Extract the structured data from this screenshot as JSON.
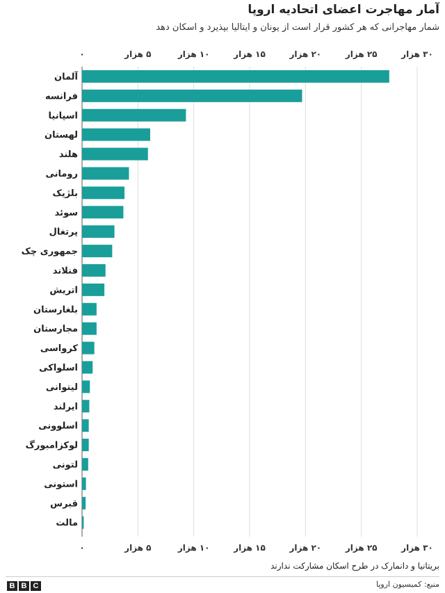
{
  "chart_data": {
    "type": "bar",
    "orientation": "horizontal",
    "title": "آمار مهاجرت اعضای اتحادیه اروپا",
    "subtitle": "شمار مهاجرانی که هر کشور قرار است از یونان و ایتالیا بپذیرد و اسکان دهد",
    "categories": [
      "آلمان",
      "فرانسه",
      "اسپانیا",
      "لهستان",
      "هلند",
      "رومانی",
      "بلژیک",
      "سوئد",
      "پرتغال",
      "جمهوری چک",
      "فنلاند",
      "اتریش",
      "بلغارستان",
      "مجارستان",
      "کرواسی",
      "اسلواکی",
      "لیتوانی",
      "ایرلند",
      "اسلوونی",
      "لوکزامبورگ",
      "لتونی",
      "استونی",
      "قبرس",
      "مالت"
    ],
    "values": [
      27500,
      19700,
      9300,
      6100,
      5900,
      4200,
      3800,
      3700,
      2900,
      2700,
      2100,
      2000,
      1300,
      1300,
      1100,
      950,
      700,
      650,
      600,
      600,
      550,
      350,
      320,
      150
    ],
    "xlim": [
      0,
      30000
    ],
    "ticks": [
      0,
      5000,
      10000,
      15000,
      20000,
      25000,
      30000
    ],
    "tick_labels": [
      "۰",
      "۵ هزار",
      "۱۰ هزار",
      "۱۵ هزار",
      "۲۰ هزار",
      "۲۵ هزار",
      "۳۰ هزار"
    ],
    "tick_positions": "top-and-bottom",
    "grid": true,
    "bar_color": "#1a9e9a",
    "grid_color": "#dddddd"
  },
  "footnote": "بریتانیا و دانمارک در طرح اسکان مشارکت ندارند",
  "source": "منبع: کمیسیون اروپا",
  "logo": {
    "letters": [
      "B",
      "B",
      "C"
    ]
  }
}
